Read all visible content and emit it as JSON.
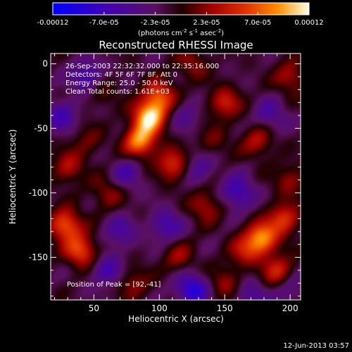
{
  "colorbar": {
    "ticks": [
      "-0.00012",
      "-7.0e-05",
      "-2.3e-05",
      "2.3e-05",
      "7.0e-05",
      "0.00012"
    ],
    "unit_main": "(photons cm",
    "unit_exp1": "-2",
    "unit_mid": " s",
    "unit_exp2": "-1",
    "unit_tail": " asec",
    "unit_exp3": "-2",
    "unit_close": ")"
  },
  "title": "Reconstructed RHESSI Image",
  "annotations": [
    "26-Sep-2003 22:32:32.000 to 22:35:16.000",
    "Detectors: 4F 5F 6F 7F 8F, Att 0",
    "Energy Range: 25.0 - 50.0 keV",
    "Clean     Total counts: 1.61E+03"
  ],
  "peak_label": "Position of Peak = [92,-41]",
  "timestamp": "12-Jun-2013 03:57",
  "chart_data": {
    "type": "heatmap",
    "title": "Reconstructed RHESSI Image",
    "xlabel": "Heliocentric X (arcsec)",
    "ylabel": "Heliocentric Y (arcsec)",
    "xlim": [
      17,
      208
    ],
    "ylim": [
      -183,
      8
    ],
    "xticks": [
      50,
      100,
      150,
      200
    ],
    "yticks": [
      0,
      -50,
      -100,
      -150
    ],
    "colorbar_range": [
      -0.00012,
      0.00012
    ],
    "peak": [
      92,
      -41
    ],
    "hotspots": [
      {
        "x": 92,
        "y": -41,
        "v": 0.00012
      },
      {
        "x": 85,
        "y": -60,
        "v": 0.0001
      },
      {
        "x": 100,
        "y": -25,
        "v": 8e-05
      },
      {
        "x": 110,
        "y": -78,
        "v": 7e-05
      },
      {
        "x": 28,
        "y": -125,
        "v": 9e-05
      },
      {
        "x": 40,
        "y": -145,
        "v": 8e-05
      },
      {
        "x": 178,
        "y": -135,
        "v": 0.0001
      },
      {
        "x": 195,
        "y": -120,
        "v": 7e-05
      },
      {
        "x": 190,
        "y": -160,
        "v": 6e-05
      },
      {
        "x": 165,
        "y": -145,
        "v": 5e-05
      },
      {
        "x": 135,
        "y": -110,
        "v": 5e-05
      },
      {
        "x": 115,
        "y": -150,
        "v": 4e-05
      },
      {
        "x": 60,
        "y": -100,
        "v": 4e-05
      },
      {
        "x": 30,
        "y": -80,
        "v": 5e-05
      },
      {
        "x": 150,
        "y": -30,
        "v": 6e-05
      },
      {
        "x": 175,
        "y": -60,
        "v": 5e-05
      },
      {
        "x": 200,
        "y": -10,
        "v": 5e-05
      },
      {
        "x": 125,
        "y": 0,
        "v": 4e-05
      },
      {
        "x": 55,
        "y": -20,
        "v": 3e-05
      },
      {
        "x": 80,
        "y": -170,
        "v": 4e-05
      },
      {
        "x": 150,
        "y": -170,
        "v": 4e-05
      },
      {
        "x": 200,
        "y": -90,
        "v": 4e-05
      },
      {
        "x": 45,
        "y": -60,
        "v": 3e-05
      },
      {
        "x": 140,
        "y": -60,
        "v": 3e-05
      },
      {
        "x": 45,
        "y": -10,
        "v": -6e-05
      },
      {
        "x": 25,
        "y": -40,
        "v": -5e-05
      },
      {
        "x": 160,
        "y": -100,
        "v": -6e-05
      },
      {
        "x": 125,
        "y": -175,
        "v": -8e-05
      },
      {
        "x": 105,
        "y": -125,
        "v": -5e-05
      },
      {
        "x": 60,
        "y": -160,
        "v": -5e-05
      },
      {
        "x": 185,
        "y": -40,
        "v": -4e-05
      },
      {
        "x": 70,
        "y": -130,
        "v": -4e-05
      },
      {
        "x": 75,
        "y": -85,
        "v": -4e-05
      },
      {
        "x": 130,
        "y": -80,
        "v": -4e-05
      },
      {
        "x": 170,
        "y": -180,
        "v": -4e-05
      },
      {
        "x": 200,
        "y": -175,
        "v": -3e-05
      },
      {
        "x": 120,
        "y": -40,
        "v": -3e-05
      }
    ]
  }
}
